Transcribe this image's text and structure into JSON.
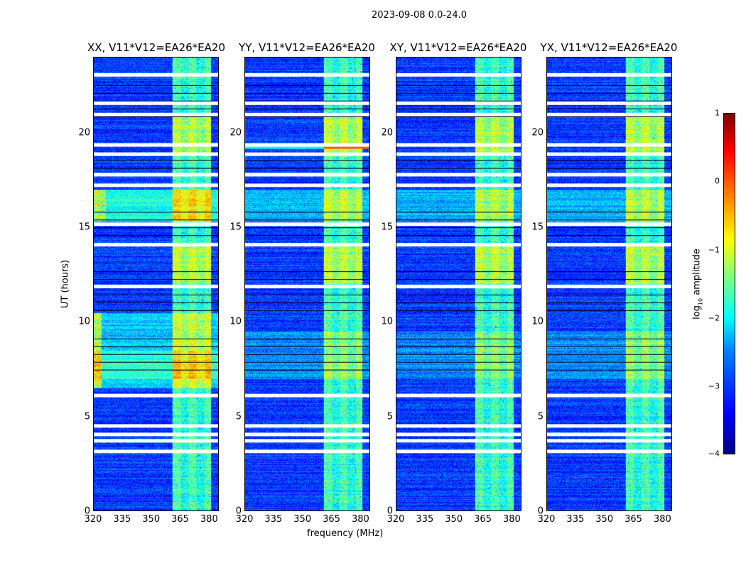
{
  "chart_data": {
    "type": "heatmap",
    "title": "2023-09-08 0.0-24.0",
    "xlabel": "frequency (MHz)",
    "ylabel": "UT (hours)",
    "xlim": [
      320,
      385
    ],
    "ylim": [
      0,
      24
    ],
    "xticks": [
      "320",
      "335",
      "350",
      "365",
      "380"
    ],
    "yticks": [
      "0",
      "5",
      "10",
      "15",
      "20"
    ],
    "panels": [
      {
        "title": "XX, V11*V12=EA26*EA20",
        "pol": "XX"
      },
      {
        "title": "YY, V11*V12=EA26*EA20",
        "pol": "YY"
      },
      {
        "title": "XY, V11*V12=EA26*EA20",
        "pol": "XY"
      },
      {
        "title": "YX, V11*V12=EA26*EA20",
        "pol": "YX"
      }
    ],
    "bright_band_mhz": [
      361,
      381
    ],
    "flagged_hours": [
      23.1,
      21.6,
      21.0,
      19.4,
      18.9,
      17.8,
      17.25,
      15.2,
      14.1,
      11.9,
      6.1,
      4.5,
      4.05,
      3.7,
      3.15
    ],
    "colorbar": {
      "label": "log10 amplitude",
      "label_main": "log",
      "label_sub": "10",
      "label_rest": " amplitude",
      "range": [
        -4,
        1
      ],
      "ticks": [
        "1",
        "0",
        "−1",
        "−2",
        "−3",
        "−4"
      ]
    }
  }
}
